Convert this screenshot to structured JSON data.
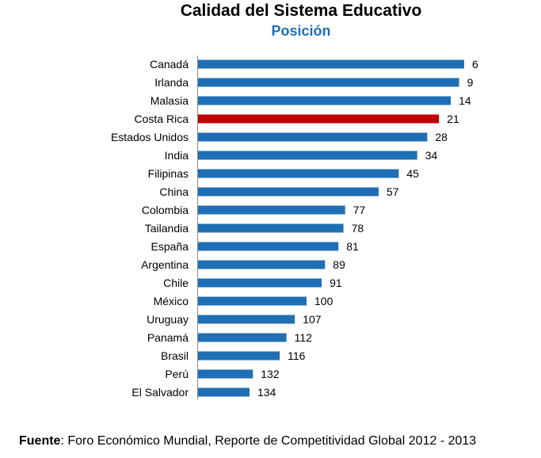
{
  "chart_data": {
    "type": "bar",
    "orientation": "horizontal",
    "title": "Calidad del Sistema Educativo",
    "subtitle": "Posición",
    "categories": [
      "Canadá",
      "Irlanda",
      "Malasia",
      "Costa Rica",
      "Estados Unidos",
      "India",
      "Filipinas",
      "China",
      "Colombia",
      "Tailandia",
      "España",
      "Argentina",
      "Chile",
      "México",
      "Uruguay",
      "Panamá",
      "Brasil",
      "Perú",
      "El Salvador"
    ],
    "values": [
      6,
      9,
      14,
      21,
      28,
      34,
      45,
      57,
      77,
      78,
      81,
      89,
      91,
      100,
      107,
      112,
      116,
      132,
      134
    ],
    "highlight": "Costa Rica",
    "colors": {
      "bar": "#1f6fb5",
      "highlight": "#c00000",
      "subtitle": "#1f6fb5"
    },
    "scale": "rank (lower position = longer bar)",
    "grid": false,
    "legend": "none"
  },
  "source": {
    "label": "Fuente",
    "text": "Foro Económico Mundial, Reporte de Competitividad Global 2012 - 2013"
  }
}
